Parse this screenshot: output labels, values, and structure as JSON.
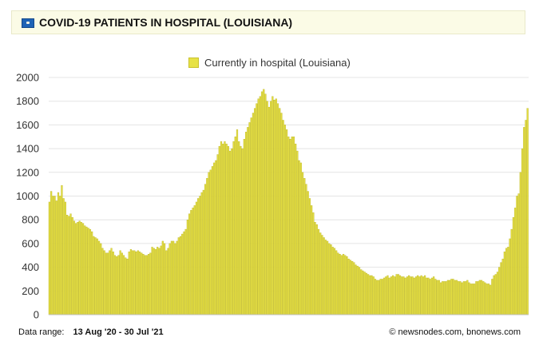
{
  "header": {
    "title": "COVID-19 PATIENTS IN HOSPITAL (LOUISIANA)",
    "icon": "louisiana-flag-icon"
  },
  "colors": {
    "bar": "#e4de3f",
    "bar_stroke": "#bcb62e",
    "grid": "#e4e4e4",
    "header_bg": "#fbfbe6"
  },
  "footer": {
    "range_label": "Data range:",
    "range_value": "13 Aug '20  -  30 Jul '21",
    "source": "© newsnodes.com, bnonews.com"
  },
  "chart_data": {
    "type": "bar",
    "series": [
      {
        "name": "Currently in hospital (Louisiana)"
      }
    ],
    "x_start": "13 Aug '20",
    "x_end": "30 Jul '21",
    "ylim": [
      0,
      2000
    ],
    "yticks": [
      0,
      200,
      400,
      600,
      800,
      1000,
      1200,
      1400,
      1600,
      1800,
      2000
    ],
    "grid": true,
    "legend": "top-center",
    "values": [
      950,
      1040,
      1000,
      1000,
      960,
      1030,
      1000,
      1090,
      980,
      950,
      840,
      830,
      850,
      820,
      790,
      770,
      780,
      790,
      780,
      770,
      750,
      740,
      730,
      720,
      700,
      660,
      650,
      640,
      620,
      600,
      560,
      540,
      520,
      520,
      540,
      560,
      530,
      500,
      490,
      500,
      540,
      520,
      500,
      480,
      470,
      530,
      550,
      540,
      540,
      530,
      540,
      530,
      520,
      510,
      500,
      500,
      510,
      520,
      570,
      560,
      550,
      570,
      560,
      580,
      620,
      600,
      540,
      560,
      600,
      620,
      620,
      600,
      620,
      650,
      660,
      680,
      700,
      720,
      800,
      850,
      880,
      900,
      920,
      950,
      980,
      1000,
      1030,
      1050,
      1100,
      1150,
      1200,
      1220,
      1250,
      1280,
      1300,
      1350,
      1420,
      1460,
      1440,
      1460,
      1440,
      1420,
      1380,
      1400,
      1460,
      1500,
      1560,
      1460,
      1420,
      1400,
      1480,
      1540,
      1580,
      1620,
      1660,
      1700,
      1740,
      1780,
      1820,
      1840,
      1880,
      1900,
      1860,
      1800,
      1750,
      1800,
      1840,
      1810,
      1820,
      1780,
      1740,
      1700,
      1640,
      1600,
      1560,
      1500,
      1480,
      1500,
      1500,
      1440,
      1380,
      1300,
      1280,
      1200,
      1150,
      1100,
      1040,
      980,
      920,
      860,
      780,
      760,
      720,
      690,
      670,
      650,
      630,
      620,
      600,
      590,
      570,
      560,
      540,
      520,
      510,
      500,
      510,
      500,
      490,
      470,
      460,
      450,
      440,
      420,
      410,
      400,
      380,
      370,
      360,
      350,
      340,
      330,
      330,
      320,
      300,
      290,
      290,
      300,
      300,
      310,
      320,
      330,
      310,
      320,
      330,
      320,
      340,
      340,
      330,
      320,
      320,
      310,
      320,
      330,
      320,
      320,
      310,
      320,
      330,
      320,
      330,
      320,
      330,
      310,
      310,
      300,
      310,
      320,
      300,
      290,
      290,
      270,
      280,
      280,
      280,
      290,
      290,
      300,
      300,
      290,
      290,
      280,
      280,
      270,
      280,
      280,
      290,
      270,
      260,
      260,
      260,
      280,
      280,
      290,
      290,
      280,
      270,
      260,
      260,
      250,
      300,
      330,
      340,
      360,
      400,
      440,
      470,
      530,
      560,
      570,
      640,
      720,
      820,
      900,
      1000,
      1020,
      1200,
      1400,
      1580,
      1640,
      1740
    ]
  }
}
